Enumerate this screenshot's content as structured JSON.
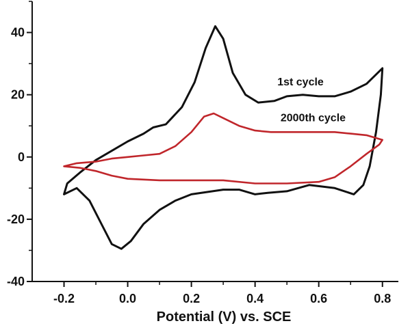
{
  "chart_data": {
    "type": "line",
    "title": "",
    "xlabel": "Potential (V) vs. SCE",
    "ylabel": "",
    "xlim": [
      -0.3,
      0.85
    ],
    "ylim": [
      -40,
      50
    ],
    "x_ticks": [
      -0.2,
      0.0,
      0.2,
      0.4,
      0.6,
      0.8
    ],
    "x_tick_labels": [
      "-0.2",
      "0.0",
      "0.2",
      "0.4",
      "0.6",
      "0.8"
    ],
    "y_ticks": [
      -40,
      -20,
      0,
      20,
      40
    ],
    "y_tick_labels": [
      "-40",
      "-20",
      "0",
      "20",
      "40"
    ],
    "grid": false,
    "legend": "none",
    "annotations": [
      {
        "text": "1st cycle",
        "x": 0.47,
        "y": 23
      },
      {
        "text": "2000th cycle",
        "x": 0.48,
        "y": 11.5
      }
    ],
    "series": [
      {
        "name": "1st cycle",
        "color": "#111111",
        "closed": true,
        "points": [
          [
            -0.2,
            -12
          ],
          [
            -0.19,
            -8.5
          ],
          [
            -0.15,
            -5
          ],
          [
            -0.1,
            -1
          ],
          [
            -0.05,
            2
          ],
          [
            0.0,
            5
          ],
          [
            0.05,
            7.5
          ],
          [
            0.08,
            9.5
          ],
          [
            0.12,
            10.5
          ],
          [
            0.17,
            16
          ],
          [
            0.21,
            24
          ],
          [
            0.245,
            35
          ],
          [
            0.275,
            42
          ],
          [
            0.3,
            38
          ],
          [
            0.33,
            27
          ],
          [
            0.37,
            20
          ],
          [
            0.41,
            17.5
          ],
          [
            0.46,
            18
          ],
          [
            0.5,
            19.5
          ],
          [
            0.55,
            20
          ],
          [
            0.6,
            19.5
          ],
          [
            0.65,
            19.5
          ],
          [
            0.7,
            21
          ],
          [
            0.75,
            23.5
          ],
          [
            0.8,
            28.5
          ],
          [
            0.795,
            20
          ],
          [
            0.78,
            8
          ],
          [
            0.76,
            -3
          ],
          [
            0.74,
            -9
          ],
          [
            0.71,
            -12
          ],
          [
            0.65,
            -10
          ],
          [
            0.57,
            -9
          ],
          [
            0.5,
            -11
          ],
          [
            0.44,
            -11.5
          ],
          [
            0.4,
            -12
          ],
          [
            0.35,
            -10.5
          ],
          [
            0.3,
            -10.5
          ],
          [
            0.2,
            -12
          ],
          [
            0.15,
            -14
          ],
          [
            0.1,
            -17
          ],
          [
            0.05,
            -21.5
          ],
          [
            0.01,
            -27
          ],
          [
            -0.02,
            -29.5
          ],
          [
            -0.05,
            -28
          ],
          [
            -0.08,
            -22
          ],
          [
            -0.12,
            -14
          ],
          [
            -0.16,
            -10
          ],
          [
            -0.2,
            -12
          ]
        ]
      },
      {
        "name": "2000th cycle",
        "color": "#c0262b",
        "closed": true,
        "points": [
          [
            -0.2,
            -3
          ],
          [
            -0.16,
            -2
          ],
          [
            -0.1,
            -1.5
          ],
          [
            -0.05,
            -0.5
          ],
          [
            0.0,
            0
          ],
          [
            0.05,
            0.5
          ],
          [
            0.1,
            1
          ],
          [
            0.15,
            3.5
          ],
          [
            0.2,
            8
          ],
          [
            0.24,
            13
          ],
          [
            0.27,
            14
          ],
          [
            0.3,
            12.5
          ],
          [
            0.35,
            10
          ],
          [
            0.4,
            8.5
          ],
          [
            0.45,
            8
          ],
          [
            0.5,
            8
          ],
          [
            0.55,
            8
          ],
          [
            0.6,
            8
          ],
          [
            0.65,
            8
          ],
          [
            0.7,
            7.5
          ],
          [
            0.75,
            7
          ],
          [
            0.8,
            5.5
          ],
          [
            0.79,
            4
          ],
          [
            0.75,
            1
          ],
          [
            0.7,
            -3
          ],
          [
            0.65,
            -6.5
          ],
          [
            0.6,
            -8
          ],
          [
            0.5,
            -8.5
          ],
          [
            0.4,
            -8.5
          ],
          [
            0.3,
            -7.5
          ],
          [
            0.2,
            -7.5
          ],
          [
            0.1,
            -7.5
          ],
          [
            0.0,
            -7
          ],
          [
            -0.05,
            -6
          ],
          [
            -0.1,
            -4.5
          ],
          [
            -0.15,
            -3.5
          ],
          [
            -0.2,
            -3
          ]
        ]
      }
    ]
  }
}
